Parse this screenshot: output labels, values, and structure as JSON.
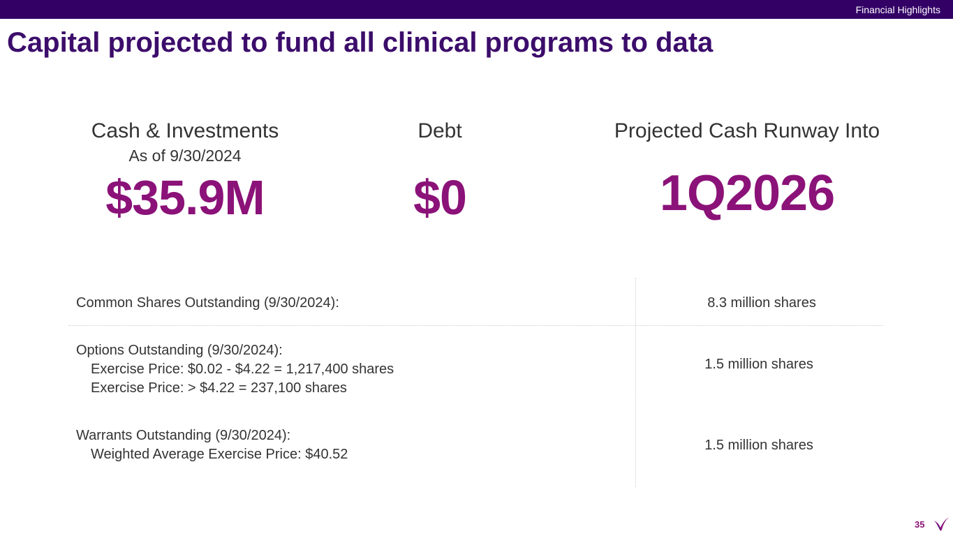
{
  "header": {
    "section_label": "Financial Highlights",
    "title": "Capital projected to fund all clinical programs to data"
  },
  "metrics": [
    {
      "label": "Cash & Investments",
      "sublabel": "As of 9/30/2024",
      "value": "$35.9M"
    },
    {
      "label": "Debt",
      "value": "$0"
    },
    {
      "label": "Projected Cash Runway Into",
      "value": "1Q2026"
    }
  ],
  "table": {
    "rows": [
      {
        "label": "Common Shares Outstanding (9/30/2024):",
        "value": "8.3 million shares"
      },
      {
        "label": "Options Outstanding (9/30/2024):",
        "details": [
          "Exercise Price:   $0.02 - $4.22   = 1,217,400  shares",
          "Exercise Price:       > $4.22        = 237,100  shares"
        ],
        "value": "1.5 million shares"
      },
      {
        "label": "Warrants Outstanding (9/30/2024):",
        "details": [
          "Weighted Average Exercise Price: $40.52"
        ],
        "value": "1.5 million shares"
      }
    ]
  },
  "footer": {
    "page_number": "35",
    "logo_icon": "bird-logo-icon"
  },
  "colors": {
    "header_bar": "#330066",
    "title": "#3c0d6b",
    "accent": "#8b1278",
    "body_text": "#333333"
  }
}
